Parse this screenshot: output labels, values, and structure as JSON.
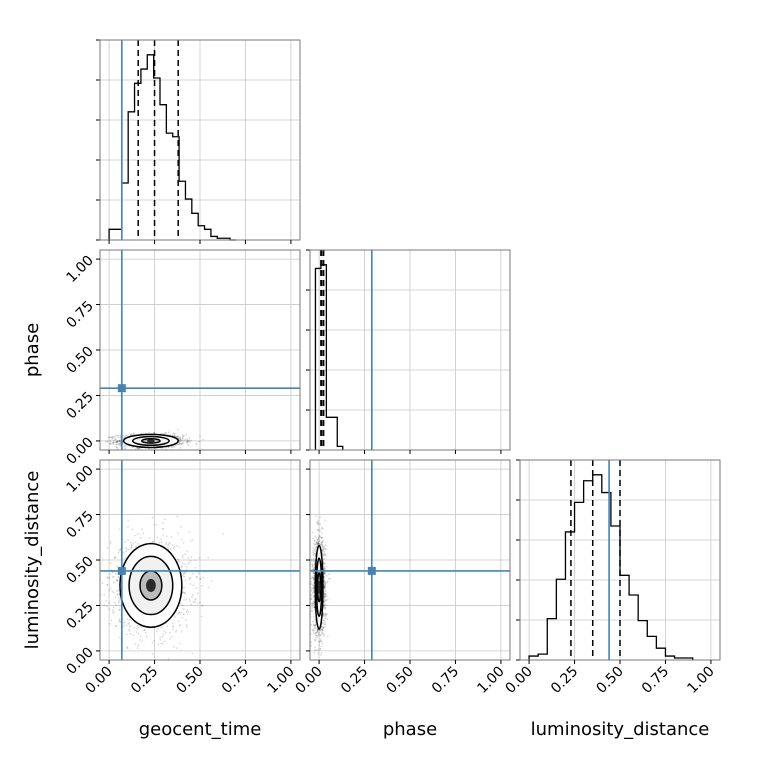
{
  "chart_data": {
    "type": "corner",
    "parameters": [
      "geocent_time",
      "phase",
      "luminosity_distance"
    ],
    "tick_values": [
      0.0,
      0.25,
      0.5,
      0.75,
      1.0
    ],
    "tick_labels": [
      "0.00",
      "0.25",
      "0.50",
      "0.75",
      "1.00"
    ],
    "axis_range": [
      -0.05,
      1.05
    ],
    "grid": true,
    "truths": {
      "geocent_time": 0.07,
      "phase": 0.29,
      "luminosity_distance": 0.44
    },
    "truth_color": "#4682b4",
    "histograms": [
      {
        "parameter": "geocent_time",
        "bin_edges": [
          0.0,
          0.035,
          0.07,
          0.105,
          0.14,
          0.175,
          0.21,
          0.245,
          0.28,
          0.315,
          0.35,
          0.385,
          0.42,
          0.455,
          0.49,
          0.525,
          0.56,
          0.595,
          0.63,
          0.665,
          0.7
        ],
        "counts": [
          6,
          6,
          32,
          72,
          88,
          96,
          104,
          91,
          76,
          60,
          58,
          33,
          23,
          15,
          8,
          6,
          2,
          1,
          1,
          0
        ],
        "quantiles": [
          0.16,
          0.25,
          0.38
        ]
      },
      {
        "parameter": "phase",
        "bin_edges": [
          -0.02,
          0.01,
          0.04,
          0.07,
          0.1,
          0.13
        ],
        "counts": [
          100,
          102,
          18,
          18,
          2
        ],
        "quantiles": [
          0.01,
          0.015,
          0.025
        ]
      },
      {
        "parameter": "luminosity_distance",
        "bin_edges": [
          0.0,
          0.05,
          0.1,
          0.15,
          0.2,
          0.25,
          0.3,
          0.35,
          0.4,
          0.45,
          0.5,
          0.55,
          0.6,
          0.65,
          0.7,
          0.75,
          0.8,
          0.85,
          0.9
        ],
        "counts": [
          2,
          3,
          21,
          41,
          65,
          80,
          91,
          94,
          85,
          68,
          43,
          33,
          20,
          12,
          6,
          2,
          1,
          1
        ],
        "quantiles": [
          0.23,
          0.35,
          0.5
        ]
      }
    ],
    "joint_distributions": [
      {
        "x": "geocent_time",
        "y": "phase",
        "center": [
          0.23,
          0.0
        ],
        "spread": [
          0.09,
          0.018
        ],
        "contours": [
          [
            0.05,
            0.012
          ],
          [
            0.1,
            0.024
          ],
          [
            0.15,
            0.036
          ]
        ]
      },
      {
        "x": "geocent_time",
        "y": "luminosity_distance",
        "center": [
          0.23,
          0.36
        ],
        "spread": [
          0.11,
          0.13
        ],
        "contours": [
          [
            0.06,
            0.08
          ],
          [
            0.12,
            0.16
          ],
          [
            0.17,
            0.23
          ]
        ]
      },
      {
        "x": "phase",
        "y": "luminosity_distance",
        "center": [
          0.0,
          0.35
        ],
        "spread": [
          0.018,
          0.13
        ],
        "contours": [
          [
            0.007,
            0.08
          ],
          [
            0.014,
            0.16
          ],
          [
            0.021,
            0.23
          ]
        ]
      }
    ]
  }
}
